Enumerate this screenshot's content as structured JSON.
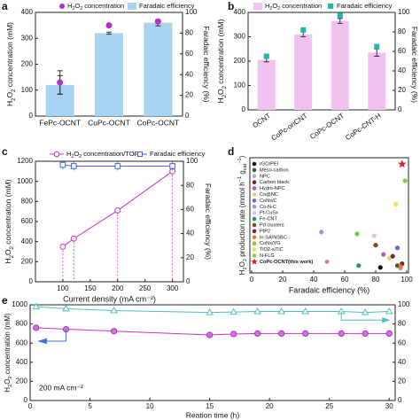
{
  "chart_data": [
    {
      "panel": "a",
      "type": "bar",
      "categories": [
        "FePc-OCNT",
        "CuPc-OCNT",
        "CoPc-OCNT"
      ],
      "series": [
        {
          "name": "H2O2 concentration",
          "kind": "point",
          "axis": "left",
          "values": [
            130,
            350,
            365
          ],
          "err": [
            45,
            0,
            0
          ]
        },
        {
          "name": "Faradaic efficiency",
          "kind": "bar",
          "axis": "right",
          "values": [
            30,
            80,
            90
          ],
          "err": [
            9,
            1,
            3
          ]
        }
      ],
      "ylabel": "H2O2 concentration (mM)",
      "y2label": "Faradaic efficiency (%)",
      "ylim": [
        0,
        400
      ],
      "yticks": [
        0,
        100,
        200,
        300,
        400
      ],
      "y2lim": [
        0,
        100
      ],
      "y2ticks": [
        0,
        20,
        40,
        60,
        80,
        100
      ],
      "legend": "top"
    },
    {
      "panel": "b",
      "type": "bar",
      "categories": [
        "OCNT",
        "CoPc-oriCNT",
        "CoPc-OCNT",
        "CoPc-CNT-H"
      ],
      "series": [
        {
          "name": "H2O2 concentration",
          "kind": "bar",
          "axis": "left",
          "values": [
            205,
            310,
            365,
            235
          ],
          "err": [
            8,
            10,
            10,
            15
          ]
        },
        {
          "name": "Faradaic efficiency",
          "kind": "point",
          "axis": "right",
          "values": [
            55,
            82,
            97,
            65
          ],
          "err": [
            2,
            2,
            1,
            3
          ]
        }
      ],
      "ylabel": "H2O2 concentration (mM)",
      "y2label": "Faradaic efficiency (%)",
      "ylim": [
        0,
        400
      ],
      "yticks": [
        0,
        100,
        200,
        300,
        400
      ],
      "y2lim": [
        0,
        100
      ],
      "y2ticks": [
        0,
        20,
        40,
        60,
        80,
        100
      ],
      "legend": "top"
    },
    {
      "panel": "c",
      "type": "line",
      "x": [
        100,
        120,
        200,
        300
      ],
      "series": [
        {
          "name": "H2O2 concentration/TOF",
          "axis": "left",
          "marker": "circle",
          "values": [
            350,
            430,
            710,
            1100
          ]
        },
        {
          "name": "Faradaic efficiency",
          "axis": "right",
          "marker": "square",
          "values": [
            97,
            96,
            96,
            96
          ]
        }
      ],
      "xlabel": "Current density (mA cm⁻²)",
      "ylabel": "H2O2 concentration (mM)",
      "y2label": "Faradaic efficiency (%)",
      "xlim": [
        50,
        320
      ],
      "xticks": [
        100,
        150,
        200,
        250,
        300
      ],
      "ylim": [
        0,
        1200
      ],
      "yticks": [
        0,
        200,
        400,
        600,
        800,
        1000,
        1200
      ],
      "y2lim": [
        0,
        100
      ],
      "y2ticks": [
        0,
        20,
        40,
        60,
        80,
        100
      ],
      "legend": "top"
    },
    {
      "panel": "d",
      "type": "scatter",
      "xlabel": "Faradaic efficiency (%)",
      "ylabel": "H2O2 production rate (mmol h⁻¹ g_cat⁻¹)",
      "xlim": [
        0,
        100
      ],
      "xticks": [
        0,
        20,
        40,
        60,
        80,
        100
      ],
      "yticks": [],
      "legend": "left",
      "points": [
        {
          "name": "rGO/PEI",
          "x": 83,
          "y": 4,
          "color": "#111111",
          "marker": "circle"
        },
        {
          "name": "Meso-carbon",
          "x": 94,
          "y": 6,
          "color": "#5b4a3a",
          "marker": "circle"
        },
        {
          "name": "NPC",
          "x": 96,
          "y": 3,
          "color": "#c2a5d8",
          "marker": "circle"
        },
        {
          "name": "Carbon black",
          "x": 97,
          "y": 8,
          "color": "#7a2424",
          "marker": "circle"
        },
        {
          "name": "Hydro-NPC",
          "x": 85,
          "y": 18,
          "color": "#b05cc0",
          "marker": "circle"
        },
        {
          "name": "Co@NC",
          "x": 89,
          "y": 14,
          "color": "#ddd27a",
          "marker": "circle"
        },
        {
          "name": "CoNx/C",
          "x": 94,
          "y": 25,
          "color": "#6a6ac8",
          "marker": "circle"
        },
        {
          "name": "Co-N-C",
          "x": 45,
          "y": 42,
          "color": "#8aa3d6",
          "marker": "circle"
        },
        {
          "name": "Pt-CuSx",
          "x": 79,
          "y": 38,
          "color": "#f2c2ce",
          "marker": "circle"
        },
        {
          "name": "Fe-CNT",
          "x": 69,
          "y": 6,
          "color": "#2a8c7e",
          "marker": "circle"
        },
        {
          "name": "Pd clusters",
          "x": 80,
          "y": 28,
          "color": "#7a4a1a",
          "marker": "circle"
        },
        {
          "name": "PtP2",
          "x": 91,
          "y": 16,
          "color": "#8a1c2c",
          "marker": "circle"
        },
        {
          "name": "In SA/NSBC",
          "x": 96,
          "y": 5,
          "color": "#e07a28",
          "marker": "circle"
        },
        {
          "name": "CoNx/VG",
          "x": 68,
          "y": 40,
          "color": "#8cbf4a",
          "marker": "circle"
        },
        {
          "name": "TiO2-x/TiC",
          "x": 93,
          "y": 72,
          "color": "#f2e34a",
          "marker": "circle"
        },
        {
          "name": "N-FLG",
          "x": 99,
          "y": 97,
          "color": "#7fd04a",
          "marker": "circle"
        },
        {
          "name": "CoPc-OCNT(this work)",
          "x": 97,
          "y": 115,
          "color": "#e0201e",
          "marker": "star"
        }
      ]
    },
    {
      "panel": "e",
      "type": "line",
      "x": [
        0.5,
        3,
        7,
        15,
        17,
        19,
        21,
        23,
        26,
        28,
        30
      ],
      "series": [
        {
          "name": "H2O2 concentration",
          "axis": "left",
          "marker": "circle",
          "color": "#cc33cc",
          "values": [
            760,
            745,
            725,
            685,
            695,
            700,
            700,
            700,
            700,
            700,
            700
          ]
        },
        {
          "name": "Faradaic efficiency",
          "axis": "right",
          "marker": "triangle",
          "color": "#4fbec2",
          "values": [
            98,
            96,
            94,
            92,
            92.5,
            93,
            93,
            93,
            93,
            92,
            93
          ]
        }
      ],
      "xlabel": "Reation time (h)",
      "ylabel": "H2O2 concentration (mM)",
      "xlim": [
        0,
        30.5
      ],
      "xticks": [
        0,
        5,
        10,
        15,
        20,
        25,
        30
      ],
      "ylim": [
        0,
        1000
      ],
      "yticks": [
        0,
        200,
        400,
        600,
        800,
        1000
      ],
      "y2lim": [
        0,
        100
      ],
      "y2ticks": [
        0,
        20,
        40,
        60,
        80,
        100
      ],
      "annotation": "200 mA cm⁻²"
    }
  ],
  "panel_labels": [
    "a",
    "b",
    "c",
    "d",
    "e"
  ],
  "colors": {
    "bar_blue": "#a8d4f2",
    "bar_pink": "#f0c2f0",
    "point_purple": "#b030d0",
    "point_teal": "#21b9a8",
    "line_magenta": "#cc33cc",
    "line_blue": "#4466cc",
    "line_cyan": "#4fbec2"
  }
}
